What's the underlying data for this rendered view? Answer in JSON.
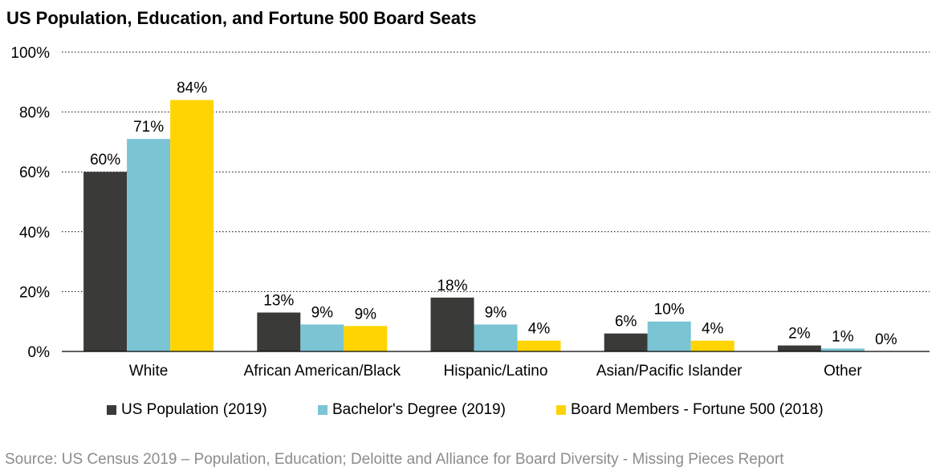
{
  "chart_data": {
    "type": "bar",
    "title": "US Population, Education, and Fortune 500 Board Seats",
    "categories": [
      "White",
      "African American/Black",
      "Hispanic/Latino",
      "Asian/Pacific Islander",
      "Other"
    ],
    "series": [
      {
        "name": "US Population (2019)",
        "color": "#3a3a38",
        "values": [
          60,
          13,
          18,
          6,
          2
        ],
        "labels": [
          "60%",
          "13%",
          "18%",
          "6%",
          "2%"
        ]
      },
      {
        "name": "Bachelor's Degree (2019)",
        "color": "#7ac4d4",
        "values": [
          71,
          9,
          9,
          10,
          1
        ],
        "labels": [
          "71%",
          "9%",
          "9%",
          "10%",
          "1%"
        ]
      },
      {
        "name": "Board Members - Fortune 500 (2018)",
        "color": "#ffd400",
        "values": [
          84,
          8.5,
          3.6,
          3.6,
          0
        ],
        "labels": [
          "84%",
          "9%",
          "4%",
          "4%",
          "0%"
        ]
      }
    ],
    "ylim": [
      0,
      100
    ],
    "yticks": [
      0,
      20,
      40,
      60,
      80,
      100
    ],
    "ytick_labels": [
      "0%",
      "20%",
      "40%",
      "60%",
      "80%",
      "100%"
    ],
    "xlabel": "",
    "ylabel": "",
    "grid": "horizontal dotted",
    "legend_position": "bottom"
  },
  "source": "Source: US Census 2019 – Population, Education; Deloitte and Alliance for Board Diversity - Missing Pieces Report"
}
